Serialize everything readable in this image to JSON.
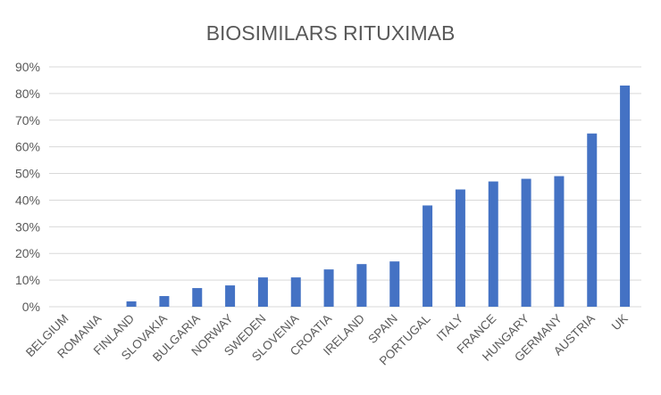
{
  "chart_data": {
    "type": "bar",
    "title": "BIOSIMILARS RITUXIMAB",
    "xlabel": "",
    "ylabel": "",
    "categories": [
      "BELGIUM",
      "ROMANIA",
      "FINLAND",
      "SLOVAKIA",
      "BULGARIA",
      "NORWAY",
      "SWEDEN",
      "SLOVENIA",
      "CROATIA",
      "IRELAND",
      "SPAIN",
      "PORTUGAL",
      "ITALY",
      "FRANCE",
      "HUNGARY",
      "GERMANY",
      "AUSTRIA",
      "UK"
    ],
    "values": [
      0,
      0,
      2,
      4,
      7,
      8,
      11,
      11,
      14,
      16,
      17,
      38,
      44,
      47,
      48,
      49,
      65,
      83
    ],
    "ylim": [
      0,
      90
    ],
    "yticks": [
      "0%",
      "10%",
      "20%",
      "30%",
      "40%",
      "50%",
      "60%",
      "70%",
      "80%",
      "90%"
    ],
    "grid": true,
    "legend": "none",
    "bar_color": "#4472C4",
    "grid_color": "#D9D9D9"
  }
}
